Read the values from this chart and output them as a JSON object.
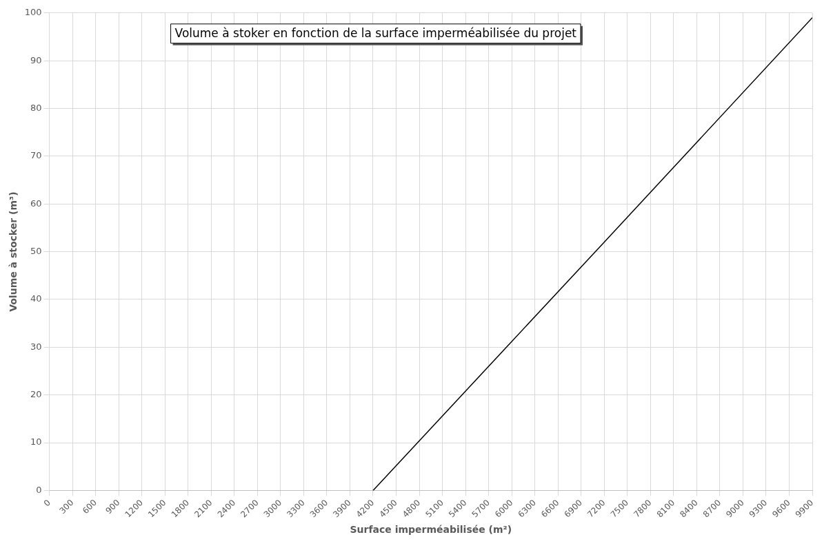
{
  "chart_data": {
    "type": "line",
    "title": "Volume à stoker en fonction de la surface imperméabilisée du projet",
    "xlabel": "Surface imperméabilisée (m²)",
    "ylabel": "Volume à stocker (m³)",
    "x": [
      4200,
      7200,
      9900
    ],
    "series": [
      {
        "color": "#000000",
        "values": [
          0,
          52,
          99
        ]
      }
    ],
    "xlim": [
      0,
      9900
    ],
    "xticks": [
      0,
      300,
      600,
      900,
      1200,
      1500,
      1800,
      2100,
      2400,
      2700,
      3000,
      3300,
      3600,
      3900,
      4200,
      4500,
      4800,
      5100,
      5400,
      5700,
      6000,
      6300,
      6600,
      6900,
      7200,
      7500,
      7800,
      8100,
      8400,
      8700,
      9000,
      9300,
      9600,
      9900
    ],
    "ylim": [
      0,
      100
    ],
    "yticks": [
      0,
      10,
      20,
      30,
      40,
      50,
      60,
      70,
      80,
      90,
      100
    ],
    "grid": true,
    "legend": false,
    "marker": "none",
    "line_style": "solid"
  }
}
